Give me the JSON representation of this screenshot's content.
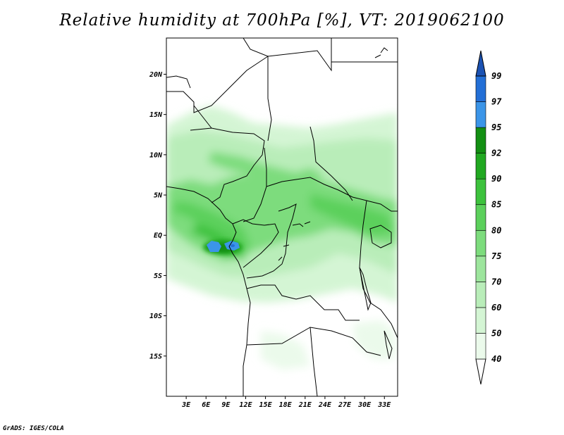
{
  "title": "Relative humidity at 700hPa [%], VT: 2019062100",
  "credit": "GrADS: IGES/COLA",
  "map": {
    "lat_ticks": [
      "20N",
      "15N",
      "10N",
      "5N",
      "EQ",
      "5S",
      "10S",
      "15S"
    ],
    "lat_values": [
      20,
      15,
      10,
      5,
      0,
      -5,
      -10,
      -15
    ],
    "lon_ticks": [
      "3E",
      "6E",
      "9E",
      "12E",
      "15E",
      "18E",
      "21E",
      "24E",
      "27E",
      "30E",
      "33E"
    ],
    "lon_values": [
      3,
      6,
      9,
      12,
      15,
      18,
      21,
      24,
      27,
      30,
      33
    ],
    "lon_range": [
      0,
      35
    ],
    "lat_range": [
      -20,
      24.5
    ]
  },
  "colorbar": {
    "labels": [
      "40",
      "50",
      "60",
      "70",
      "75",
      "80",
      "85",
      "90",
      "92",
      "95",
      "97",
      "99"
    ],
    "colors": [
      "#ffffff",
      "#ebfaeb",
      "#d4f5d4",
      "#b9edb9",
      "#9de59d",
      "#7ddc7d",
      "#5cd05c",
      "#3dc23d",
      "#21a821",
      "#138f13",
      "#3b95e8",
      "#236fd6",
      "#1b52b3"
    ]
  }
}
